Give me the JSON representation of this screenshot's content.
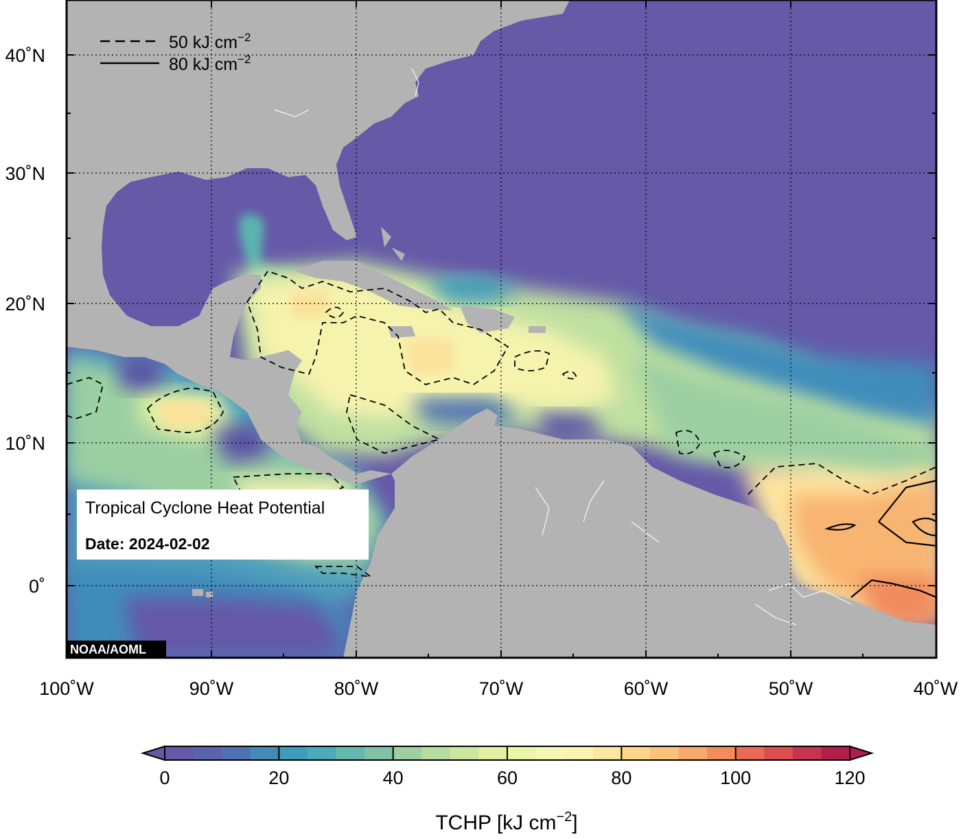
{
  "map": {
    "legend": {
      "items": [
        {
          "label": "50 kJ cm",
          "sup": "−2",
          "style": "dashed"
        },
        {
          "label": "80 kJ cm",
          "sup": "−2",
          "style": "solid"
        }
      ]
    },
    "info_box": {
      "title": "Tropical Cyclone Heat Potential",
      "date": "Date: 2024-02-02"
    },
    "credit": "NOAA/AOML",
    "lat_labels": [
      "40˚N",
      "30˚N",
      "20˚N",
      "10˚N",
      "0˚"
    ],
    "lon_labels": [
      "100˚W",
      "90˚W",
      "80˚W",
      "70˚W",
      "60˚W",
      "50˚W",
      "40˚W"
    ],
    "colors": {
      "land": "#b3b3b3",
      "cold_ocean": "#6559a8",
      "warm_ocean": "#f6f3ad",
      "hot_ocean": "#f3a35d"
    }
  },
  "colorbar": {
    "ticks": [
      "0",
      "20",
      "40",
      "60",
      "80",
      "100",
      "120"
    ],
    "label": "TCHP [kJ cm",
    "label_sup": "−2",
    "label_end": "]",
    "min": 0,
    "max": 120,
    "step": 5,
    "colors": [
      "#6559a8",
      "#5a63ad",
      "#4f72b4",
      "#438ab9",
      "#3f9cbb",
      "#4daab6",
      "#64b7ad",
      "#80c2a5",
      "#9dcfa3",
      "#b8dc9f",
      "#cde69e",
      "#dff0a0",
      "#ecf5a8",
      "#f6f8b6",
      "#fbf3b0",
      "#fde6a0",
      "#fdd68c",
      "#fcc27a",
      "#f9a96b",
      "#f48b5d",
      "#ea6b53",
      "#dc4e4f",
      "#c8334f",
      "#b01f4a"
    ]
  }
}
